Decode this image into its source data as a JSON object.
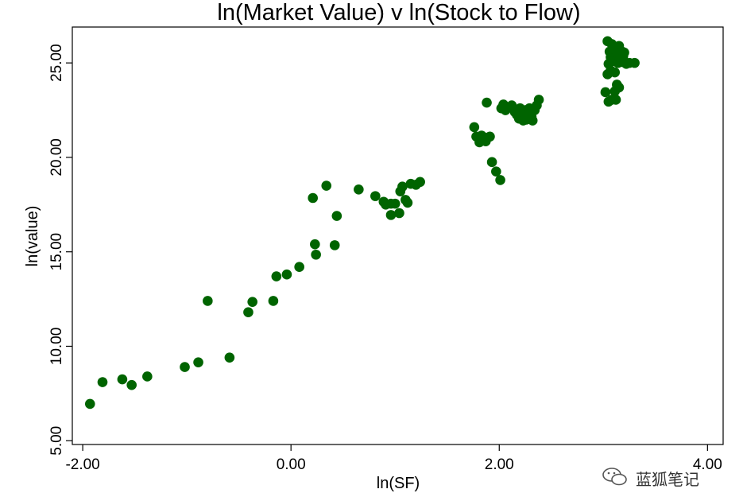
{
  "colors": {
    "marker": "#006400",
    "axis": "#000000",
    "background": "#ffffff"
  },
  "watermark": {
    "text": "蓝狐笔记",
    "icon": "wechat-icon"
  },
  "chart_data": {
    "type": "scatter",
    "title": "ln(Market Value) v ln(Stock to Flow)",
    "xlabel": "ln(SF)",
    "ylabel": "ln(value)",
    "xlim": [
      -2.1,
      4.15
    ],
    "ylim": [
      4.8,
      26.9
    ],
    "xticks": [
      -2,
      0,
      2,
      4
    ],
    "xtick_labels": [
      "-2.00",
      "0.00",
      "2.00",
      "4.00"
    ],
    "yticks": [
      5,
      10,
      15,
      20,
      25
    ],
    "ytick_labels": [
      "5.00",
      "10.00",
      "15.00",
      "20.00",
      "25.00"
    ],
    "grid": false,
    "legend": "none",
    "series": [
      {
        "x": [
          -1.93,
          -1.81,
          -1.62,
          -1.53,
          -1.38,
          -1.02,
          -0.89,
          -0.8,
          -0.59,
          -0.41,
          -0.37,
          -0.17,
          -0.14,
          -0.04,
          0.08,
          0.21,
          0.23,
          0.24,
          0.34,
          0.42,
          0.44,
          0.65,
          0.81,
          0.89,
          0.91,
          0.96,
          0.96,
          1.0,
          1.04,
          1.05,
          1.07,
          1.1,
          1.12,
          1.15,
          1.2,
          1.24,
          1.76,
          1.78,
          1.81,
          1.83,
          1.86,
          1.88,
          1.91,
          1.87,
          1.93,
          1.97,
          2.01,
          2.02,
          2.04,
          2.06,
          2.12,
          2.15,
          2.17,
          2.2,
          2.22,
          2.24,
          2.26,
          2.28,
          2.3,
          2.32,
          2.34,
          2.36,
          2.38,
          2.19,
          2.23,
          2.27,
          2.31,
          2.25,
          2.29,
          3.02,
          3.04,
          3.05,
          3.06,
          3.07,
          3.08,
          3.1,
          3.11,
          3.12,
          3.13,
          3.14,
          3.15,
          3.16,
          3.17,
          3.18,
          3.19,
          3.2,
          3.22,
          3.25,
          3.3,
          3.05,
          3.08,
          3.11,
          3.13,
          3.15,
          3.04,
          3.07,
          3.12,
          3.09
        ],
        "y": [
          6.95,
          8.1,
          8.25,
          7.95,
          8.4,
          8.9,
          9.15,
          12.4,
          9.4,
          11.8,
          12.35,
          12.4,
          13.7,
          13.8,
          14.2,
          17.85,
          15.4,
          14.85,
          18.5,
          15.35,
          16.9,
          18.3,
          17.95,
          17.65,
          17.5,
          17.55,
          16.95,
          17.55,
          17.05,
          18.2,
          18.45,
          17.75,
          17.6,
          18.6,
          18.55,
          18.7,
          21.6,
          21.1,
          20.8,
          21.15,
          21.05,
          22.9,
          21.1,
          20.85,
          19.75,
          19.25,
          18.8,
          22.6,
          22.8,
          22.5,
          22.75,
          22.4,
          22.25,
          22.6,
          22.2,
          22.4,
          22.0,
          22.3,
          22.55,
          21.95,
          22.5,
          22.75,
          23.05,
          22.05,
          21.95,
          22.35,
          22.15,
          22.5,
          22.6,
          23.45,
          24.4,
          24.95,
          25.6,
          25.3,
          26.0,
          25.1,
          24.5,
          25.8,
          25.5,
          25.0,
          25.9,
          25.4,
          25.05,
          25.6,
          25.35,
          25.55,
          24.95,
          25.0,
          25.0,
          22.95,
          23.05,
          23.5,
          23.85,
          23.7,
          26.15,
          24.6,
          23.05,
          25.75
        ]
      }
    ]
  }
}
